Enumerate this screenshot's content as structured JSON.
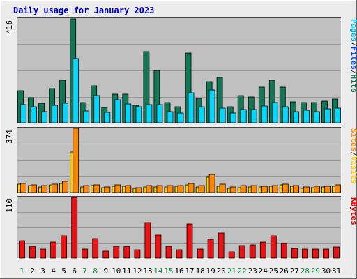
{
  "chart_data": {
    "type": "bar",
    "title": "Daily usage for January 2023",
    "categories": [
      "1",
      "2",
      "3",
      "4",
      "5",
      "6",
      "7",
      "8",
      "9",
      "10",
      "11",
      "12",
      "13",
      "14",
      "15",
      "16",
      "17",
      "18",
      "19",
      "20",
      "21",
      "22",
      "23",
      "24",
      "25",
      "26",
      "27",
      "28",
      "29",
      "30",
      "31"
    ],
    "weekend_days": [
      "1",
      "7",
      "8",
      "14",
      "15",
      "21",
      "22",
      "28",
      "29"
    ],
    "panels": [
      {
        "id": "top",
        "ymax_label": "416",
        "ylim": [
          0,
          416
        ],
        "side_labels": [
          {
            "text": "Pages",
            "color": "#00b8e6"
          },
          {
            "text": "/",
            "color": "#333333"
          },
          {
            "text": "Files",
            "color": "#0048ff"
          },
          {
            "text": "/",
            "color": "#333333"
          },
          {
            "text": "Hits",
            "color": "#1a7a5a"
          }
        ],
        "series": [
          {
            "name": "Hits",
            "color": "#117755",
            "values": [
              128,
              100,
              78,
              137,
              171,
              416,
              81,
              149,
              62,
              115,
              115,
              71,
              285,
              209,
              81,
              64,
              279,
              97,
              165,
              182,
              65,
              108,
              104,
              142,
              170,
              141,
              85,
              82,
              81,
              86,
              96
            ]
          },
          {
            "name": "Pages",
            "color": "#00d8ff",
            "values": [
              73,
              65,
              45,
              70,
              79,
              258,
              48,
              109,
              42,
              92,
              74,
              63,
              73,
              73,
              46,
              40,
              121,
              64,
              131,
              60,
              39,
              54,
              54,
              67,
              82,
              63,
              45,
              51,
              44,
              57,
              60
            ]
          }
        ]
      },
      {
        "id": "mid",
        "ymax_label": "374",
        "ylim": [
          0,
          374
        ],
        "side_labels": [
          {
            "text": "Sites",
            "color": "#ff8800"
          },
          {
            "text": "/",
            "color": "#333333"
          },
          {
            "text": "Visits",
            "color": "#ffcc00"
          }
        ],
        "series": [
          {
            "name": "Visits",
            "color": "#ffcc00",
            "values": [
              48,
              42,
              34,
              43,
              51,
              234,
              31,
              42,
              27,
              37,
              36,
              24,
              33,
              34,
              33,
              35,
              45,
              33,
              90,
              38,
              26,
              30,
              34,
              32,
              35,
              43,
              36,
              26,
              30,
              31,
              36
            ]
          },
          {
            "name": "Sites",
            "color": "#ff8800",
            "values": [
              52,
              45,
              41,
              48,
              65,
              374,
              40,
              44,
              31,
              44,
              40,
              30,
              41,
              42,
              40,
              40,
              54,
              39,
              106,
              47,
              32,
              40,
              40,
              38,
              42,
              47,
              40,
              33,
              36,
              37,
              45
            ]
          }
        ]
      },
      {
        "id": "bot",
        "ymax_label": "110",
        "ylim": [
          0,
          110
        ],
        "side_labels": [
          {
            "text": "KBytes",
            "color": "#e00000"
          }
        ],
        "series": [
          {
            "name": "KBytes",
            "color": "#ee1111",
            "values": [
              31,
              22,
              16,
              29,
              40,
              110,
              16,
              36,
              13,
              22,
              22,
              15,
              64,
              42,
              21,
              15,
              62,
              17,
              34,
              45,
              12,
              23,
              24,
              29,
              41,
              27,
              18,
              16,
              17,
              17,
              20
            ]
          }
        ]
      }
    ]
  }
}
